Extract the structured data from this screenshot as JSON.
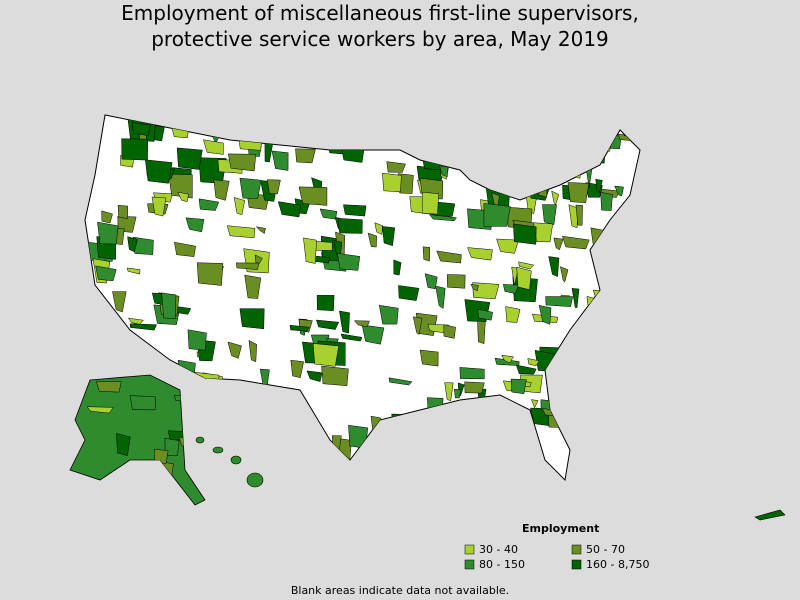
{
  "header": {
    "title_lines": [
      "Employment of miscellaneous first-line supervisors,",
      "protective service workers by area, May 2019"
    ]
  },
  "legend": {
    "title": "Employment",
    "items": [
      {
        "label": "30 - 40",
        "color": "#a8d12f"
      },
      {
        "label": "50 - 70",
        "color": "#6b8e23"
      },
      {
        "label": "80 - 150",
        "color": "#2e8b2e"
      },
      {
        "label": "160 - 8,750",
        "color": "#006400"
      }
    ]
  },
  "footnote": "Blank areas indicate data not available."
}
